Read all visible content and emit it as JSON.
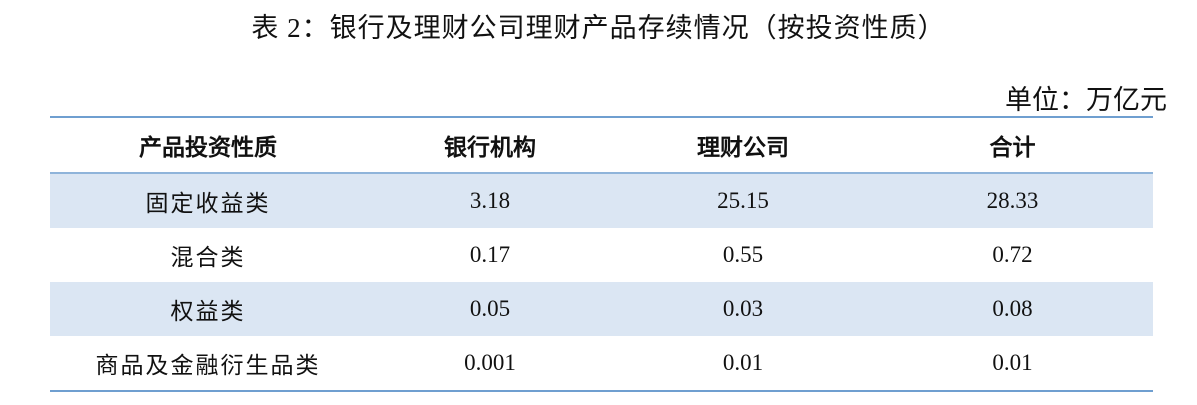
{
  "title": "表 2：银行及理财公司理财产品存续情况（按投资性质）",
  "unit": "单位：万亿元",
  "table": {
    "header": [
      "产品投资性质",
      "银行机构",
      "理财公司",
      "合计"
    ],
    "rows": [
      [
        "固定收益类",
        "3.18",
        "25.15",
        "28.33"
      ],
      [
        "混合类",
        "0.17",
        "0.55",
        "0.72"
      ],
      [
        "权益类",
        "0.05",
        "0.03",
        "0.08"
      ],
      [
        "商品及金融衍生品类",
        "0.001",
        "0.01",
        "0.01"
      ]
    ]
  }
}
